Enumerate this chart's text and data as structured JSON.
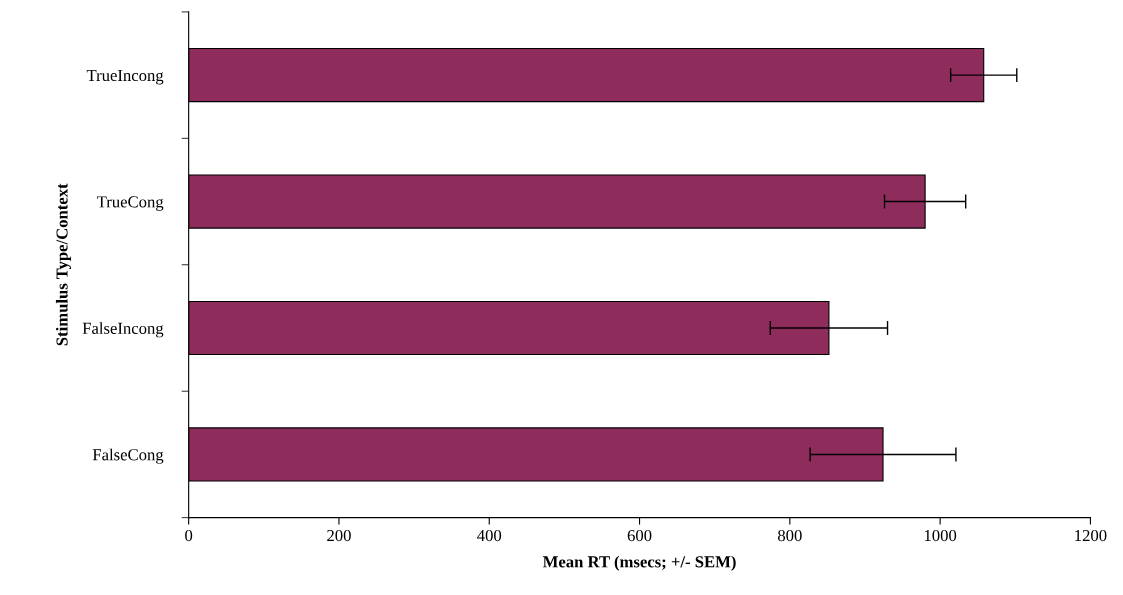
{
  "chart_data": {
    "type": "bar",
    "orientation": "horizontal",
    "xlabel": "Mean RT (msecs; +/- SEM)",
    "ylabel": "Stimulus Type/Context",
    "categories": [
      "TrueIncong",
      "TrueCong",
      "FalseIncong",
      "FalseCong"
    ],
    "values": [
      1058,
      980,
      852,
      924
    ],
    "errors": [
      44,
      54,
      78,
      97
    ],
    "color": "#8e2c5c",
    "xlim": [
      0,
      1200
    ],
    "xticks": [
      0,
      200,
      400,
      600,
      800,
      1000,
      1200
    ],
    "grid": false
  }
}
